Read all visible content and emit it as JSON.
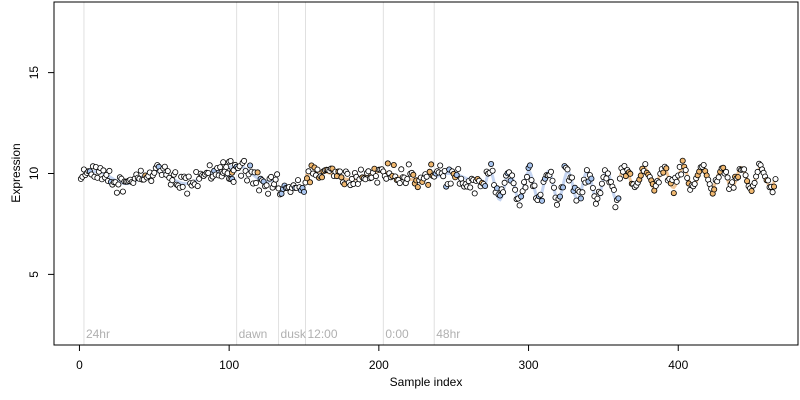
{
  "chart_data": {
    "type": "scatter",
    "xlabel": "Sample index",
    "ylabel": "Expression",
    "xlim": [
      -17,
      480
    ],
    "ylim": [
      1.5,
      18.5
    ],
    "xticks": [
      0,
      100,
      200,
      300,
      400
    ],
    "yticks": [
      5,
      10,
      15
    ],
    "grid": false,
    "legend": "none",
    "colors": {
      "point_edge": "#000000",
      "point_default": "#ffffff",
      "point_blue": "#a8c4ee",
      "point_orange": "#f0b870",
      "line_blue": "#9db8e8",
      "line_orange": "#e8a050",
      "marker_line": "#e0e0e0"
    },
    "markers": [
      {
        "x": 3,
        "label": "24hr"
      },
      {
        "x": 105,
        "label": "dawn"
      },
      {
        "x": 133,
        "label": "dusk"
      },
      {
        "x": 151,
        "label": "12:00"
      },
      {
        "x": 203,
        "label": "0:00"
      },
      {
        "x": 237,
        "label": "48hr"
      }
    ],
    "segments": [
      {
        "x0": 1,
        "x1": 104,
        "base": 9.8,
        "amp": 0.3,
        "period": 40,
        "noise": 0.22,
        "style": "mixed"
      },
      {
        "x0": 95,
        "x1": 132,
        "base": 10.0,
        "amp": 0.4,
        "period": 40,
        "noise": 0.25,
        "style": "mixed"
      },
      {
        "x0": 133,
        "x1": 150,
        "base": 9.2,
        "amp": 0.1,
        "period": 40,
        "noise": 0.15,
        "style": "blue"
      },
      {
        "x0": 151,
        "x1": 236,
        "base": 9.9,
        "amp": 0.2,
        "period": 40,
        "noise": 0.25,
        "style": "orange"
      },
      {
        "x0": 237,
        "x1": 270,
        "base": 9.8,
        "amp": 0.2,
        "period": 40,
        "noise": 0.25,
        "style": "mixed"
      },
      {
        "x0": 271,
        "x1": 360,
        "base": 9.4,
        "amp": 0.7,
        "period": 13,
        "noise": 0.2,
        "style": "blue"
      },
      {
        "x0": 361,
        "x1": 465,
        "base": 9.8,
        "amp": 0.5,
        "period": 13,
        "noise": 0.15,
        "style": "orange"
      }
    ]
  }
}
